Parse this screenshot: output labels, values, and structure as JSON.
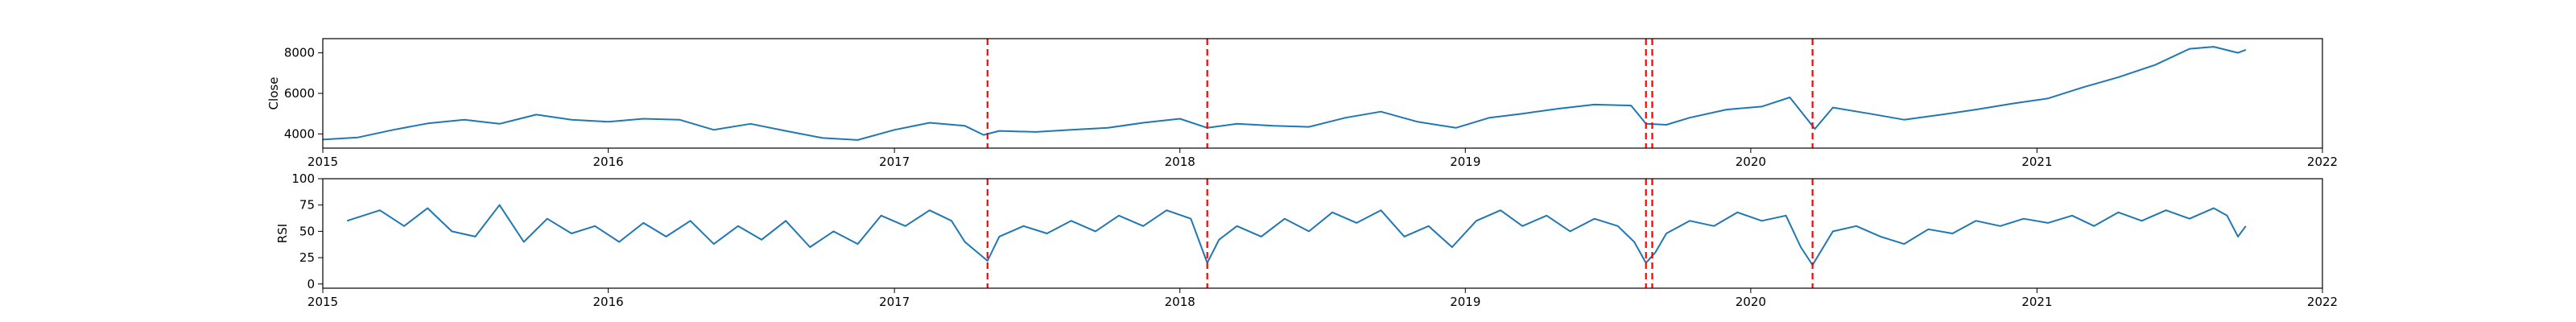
{
  "chart_data": [
    {
      "type": "line",
      "ylabel": "Close",
      "xlim": [
        "2015-01-01",
        "2022-01-01"
      ],
      "ylim": [
        3300,
        8700
      ],
      "x_ticks": [
        "2015",
        "2016",
        "2017",
        "2018",
        "2019",
        "2020",
        "2021",
        "2022"
      ],
      "y_ticks": [
        4000,
        6000,
        8000
      ],
      "grid": false,
      "series": [
        {
          "color": "#1f77b4",
          "points": [
            [
              "2015-01-01",
              3720
            ],
            [
              "2015-02-15",
              3830
            ],
            [
              "2015-04-01",
              4200
            ],
            [
              "2015-05-15",
              4520
            ],
            [
              "2015-07-01",
              4700
            ],
            [
              "2015-08-15",
              4500
            ],
            [
              "2015-10-01",
              4950
            ],
            [
              "2015-11-15",
              4700
            ],
            [
              "2016-01-01",
              4600
            ],
            [
              "2016-02-15",
              4750
            ],
            [
              "2016-04-01",
              4700
            ],
            [
              "2016-05-15",
              4200
            ],
            [
              "2016-07-01",
              4500
            ],
            [
              "2016-08-15",
              4150
            ],
            [
              "2016-10-01",
              3800
            ],
            [
              "2016-11-15",
              3700
            ],
            [
              "2017-01-01",
              4200
            ],
            [
              "2017-02-15",
              4550
            ],
            [
              "2017-04-01",
              4400
            ],
            [
              "2017-04-25",
              3950
            ],
            [
              "2017-05-15",
              4150
            ],
            [
              "2017-07-01",
              4100
            ],
            [
              "2017-08-15",
              4200
            ],
            [
              "2017-10-01",
              4300
            ],
            [
              "2017-11-15",
              4550
            ],
            [
              "2018-01-01",
              4750
            ],
            [
              "2018-02-05",
              4300
            ],
            [
              "2018-03-15",
              4500
            ],
            [
              "2018-05-01",
              4400
            ],
            [
              "2018-06-15",
              4350
            ],
            [
              "2018-08-01",
              4800
            ],
            [
              "2018-09-15",
              5100
            ],
            [
              "2018-11-01",
              4600
            ],
            [
              "2018-12-20",
              4300
            ],
            [
              "2019-02-01",
              4800
            ],
            [
              "2019-03-15",
              5000
            ],
            [
              "2019-05-01",
              5250
            ],
            [
              "2019-06-15",
              5450
            ],
            [
              "2019-08-01",
              5400
            ],
            [
              "2019-08-20",
              4500
            ],
            [
              "2019-09-15",
              4450
            ],
            [
              "2019-10-15",
              4800
            ],
            [
              "2019-12-01",
              5200
            ],
            [
              "2020-01-15",
              5350
            ],
            [
              "2020-02-20",
              5800
            ],
            [
              "2020-03-23",
              4250
            ],
            [
              "2020-04-15",
              5300
            ],
            [
              "2020-06-01",
              5000
            ],
            [
              "2020-07-15",
              4700
            ],
            [
              "2020-09-01",
              4950
            ],
            [
              "2020-10-15",
              5200
            ],
            [
              "2020-12-01",
              5500
            ],
            [
              "2021-01-15",
              5750
            ],
            [
              "2021-03-01",
              6300
            ],
            [
              "2021-04-15",
              6800
            ],
            [
              "2021-06-01",
              7400
            ],
            [
              "2021-07-15",
              8200
            ],
            [
              "2021-08-15",
              8300
            ],
            [
              "2021-09-15",
              8000
            ],
            [
              "2021-09-25",
              8150
            ]
          ]
        }
      ],
      "vlines": {
        "color": "#ff0000",
        "style": "dashed",
        "x": [
          "2017-04-30",
          "2018-02-05",
          "2019-08-20",
          "2019-08-28",
          "2020-03-20"
        ]
      }
    },
    {
      "type": "line",
      "ylabel": "RSI",
      "xlim": [
        "2015-01-01",
        "2022-01-01"
      ],
      "ylim": [
        -4,
        100
      ],
      "x_ticks": [
        "2015",
        "2016",
        "2017",
        "2018",
        "2019",
        "2020",
        "2021",
        "2022"
      ],
      "y_ticks": [
        0,
        25,
        50,
        75,
        100
      ],
      "grid": false,
      "series": [
        {
          "color": "#1f77b4",
          "points": [
            [
              "2015-02-01",
              60
            ],
            [
              "2015-03-15",
              70
            ],
            [
              "2015-04-15",
              55
            ],
            [
              "2015-05-15",
              72
            ],
            [
              "2015-06-15",
              50
            ],
            [
              "2015-07-15",
              45
            ],
            [
              "2015-08-15",
              75
            ],
            [
              "2015-09-15",
              40
            ],
            [
              "2015-10-15",
              62
            ],
            [
              "2015-11-15",
              48
            ],
            [
              "2015-12-15",
              55
            ],
            [
              "2016-01-15",
              40
            ],
            [
              "2016-02-15",
              58
            ],
            [
              "2016-03-15",
              45
            ],
            [
              "2016-04-15",
              60
            ],
            [
              "2016-05-15",
              38
            ],
            [
              "2016-06-15",
              55
            ],
            [
              "2016-07-15",
              42
            ],
            [
              "2016-08-15",
              60
            ],
            [
              "2016-09-15",
              35
            ],
            [
              "2016-10-15",
              50
            ],
            [
              "2016-11-15",
              38
            ],
            [
              "2016-12-15",
              65
            ],
            [
              "2017-01-15",
              55
            ],
            [
              "2017-02-15",
              70
            ],
            [
              "2017-03-15",
              60
            ],
            [
              "2017-04-01",
              40
            ],
            [
              "2017-04-30",
              22
            ],
            [
              "2017-05-15",
              45
            ],
            [
              "2017-06-15",
              55
            ],
            [
              "2017-07-15",
              48
            ],
            [
              "2017-08-15",
              60
            ],
            [
              "2017-09-15",
              50
            ],
            [
              "2017-10-15",
              65
            ],
            [
              "2017-11-15",
              55
            ],
            [
              "2017-12-15",
              70
            ],
            [
              "2018-01-15",
              62
            ],
            [
              "2018-02-05",
              20
            ],
            [
              "2018-02-20",
              42
            ],
            [
              "2018-03-15",
              55
            ],
            [
              "2018-04-15",
              45
            ],
            [
              "2018-05-15",
              62
            ],
            [
              "2018-06-15",
              50
            ],
            [
              "2018-07-15",
              68
            ],
            [
              "2018-08-15",
              58
            ],
            [
              "2018-09-15",
              70
            ],
            [
              "2018-10-15",
              45
            ],
            [
              "2018-11-15",
              55
            ],
            [
              "2018-12-15",
              35
            ],
            [
              "2019-01-15",
              60
            ],
            [
              "2019-02-15",
              70
            ],
            [
              "2019-03-15",
              55
            ],
            [
              "2019-04-15",
              65
            ],
            [
              "2019-05-15",
              50
            ],
            [
              "2019-06-15",
              62
            ],
            [
              "2019-07-15",
              55
            ],
            [
              "2019-08-05",
              40
            ],
            [
              "2019-08-20",
              20
            ],
            [
              "2019-09-01",
              30
            ],
            [
              "2019-09-15",
              48
            ],
            [
              "2019-10-15",
              60
            ],
            [
              "2019-11-15",
              55
            ],
            [
              "2019-12-15",
              68
            ],
            [
              "2020-01-15",
              60
            ],
            [
              "2020-02-15",
              65
            ],
            [
              "2020-03-05",
              35
            ],
            [
              "2020-03-20",
              18
            ],
            [
              "2020-04-15",
              50
            ],
            [
              "2020-05-15",
              55
            ],
            [
              "2020-06-15",
              45
            ],
            [
              "2020-07-15",
              38
            ],
            [
              "2020-08-15",
              52
            ],
            [
              "2020-09-15",
              48
            ],
            [
              "2020-10-15",
              60
            ],
            [
              "2020-11-15",
              55
            ],
            [
              "2020-12-15",
              62
            ],
            [
              "2021-01-15",
              58
            ],
            [
              "2021-02-15",
              65
            ],
            [
              "2021-03-15",
              55
            ],
            [
              "2021-04-15",
              68
            ],
            [
              "2021-05-15",
              60
            ],
            [
              "2021-06-15",
              70
            ],
            [
              "2021-07-15",
              62
            ],
            [
              "2021-08-15",
              72
            ],
            [
              "2021-09-01",
              65
            ],
            [
              "2021-09-15",
              45
            ],
            [
              "2021-09-25",
              55
            ]
          ]
        }
      ],
      "vlines": {
        "color": "#ff0000",
        "style": "dashed",
        "x": [
          "2017-04-30",
          "2018-02-05",
          "2019-08-20",
          "2019-08-28",
          "2020-03-20"
        ]
      }
    }
  ]
}
